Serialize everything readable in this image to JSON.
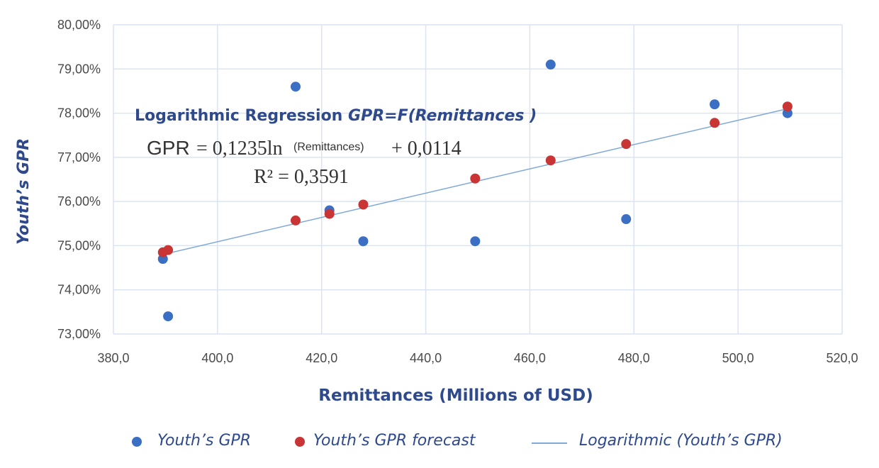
{
  "chart_data": {
    "type": "scatter",
    "xlabel": "Remittances (Millions of USD)",
    "ylabel": "Youth’s GPR",
    "xlim": [
      380,
      520
    ],
    "ylim": [
      73,
      80
    ],
    "x_ticks": [
      "380,0",
      "400,0",
      "420,0",
      "440,0",
      "460,0",
      "480,0",
      "500,0",
      "520,0"
    ],
    "y_ticks": [
      "73,00%",
      "74,00%",
      "75,00%",
      "76,00%",
      "77,00%",
      "78,00%",
      "79,00%",
      "80,00%"
    ],
    "grid": true,
    "legend_position": "bottom",
    "series": [
      {
        "name": "Youth’s GPR",
        "color": "#3a6fc4",
        "points": [
          {
            "x": 389.5,
            "y": 74.7
          },
          {
            "x": 390.5,
            "y": 73.4
          },
          {
            "x": 415.0,
            "y": 78.6
          },
          {
            "x": 421.5,
            "y": 75.8
          },
          {
            "x": 428.0,
            "y": 75.1
          },
          {
            "x": 449.5,
            "y": 75.1
          },
          {
            "x": 464.0,
            "y": 79.1
          },
          {
            "x": 478.5,
            "y": 75.6
          },
          {
            "x": 495.5,
            "y": 78.2
          },
          {
            "x": 509.5,
            "y": 78.0
          }
        ]
      },
      {
        "name": "Youth’s GPR forecast",
        "color": "#c93535",
        "points": [
          {
            "x": 389.5,
            "y": 74.85
          },
          {
            "x": 390.5,
            "y": 74.9
          },
          {
            "x": 415.0,
            "y": 75.57
          },
          {
            "x": 421.5,
            "y": 75.72
          },
          {
            "x": 428.0,
            "y": 75.93
          },
          {
            "x": 449.5,
            "y": 76.52
          },
          {
            "x": 464.0,
            "y": 76.93
          },
          {
            "x": 478.5,
            "y": 77.3
          },
          {
            "x": 495.5,
            "y": 77.78
          },
          {
            "x": 509.5,
            "y": 78.15
          }
        ]
      }
    ],
    "trendline": {
      "name": "Logarithmic (Youth’s GPR)",
      "color": "#7fa8d8",
      "from": {
        "x": 389.5,
        "y": 74.8
      },
      "to": {
        "x": 509.5,
        "y": 78.1
      }
    },
    "annotation": {
      "title": "Logarithmic Regression ",
      "title_italic": "GPR=F(Remittances  )",
      "eq_left": "GPR",
      "eq_middle": "= 0,1235ln",
      "eq_paren": "(Remittances)",
      "eq_right": "+ 0,0114",
      "r2": "R² = 0,3591"
    }
  }
}
